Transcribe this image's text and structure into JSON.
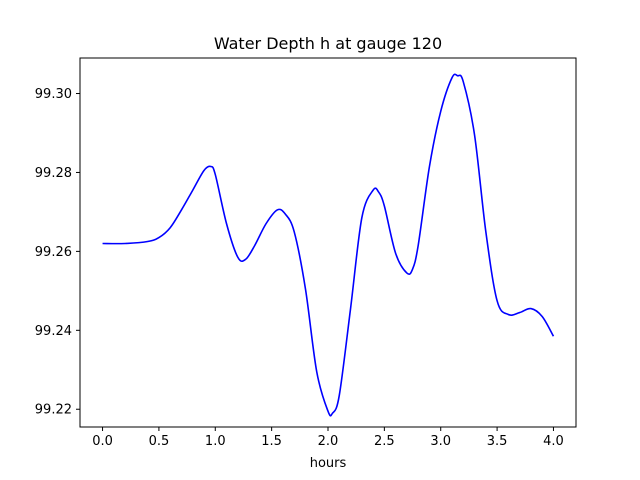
{
  "chart_data": {
    "type": "line",
    "title": "Water Depth h at gauge 120",
    "xlabel": "hours",
    "ylabel": "",
    "xlim": [
      -0.2,
      4.2
    ],
    "ylim": [
      99.2155,
      99.309
    ],
    "grid": false,
    "x_ticks": [
      0.0,
      0.5,
      1.0,
      1.5,
      2.0,
      2.5,
      3.0,
      3.5,
      4.0
    ],
    "x_tick_labels": [
      "0.0",
      "0.5",
      "1.0",
      "1.5",
      "2.0",
      "2.5",
      "3.0",
      "3.5",
      "4.0"
    ],
    "y_ticks": [
      99.22,
      99.24,
      99.26,
      99.28,
      99.3
    ],
    "y_tick_labels": [
      "99.22",
      "99.24",
      "99.26",
      "99.28",
      "99.30"
    ],
    "series": [
      {
        "color": "#0000ff",
        "x": [
          0.0,
          0.2,
          0.4,
          0.5,
          0.6,
          0.7,
          0.8,
          0.9,
          0.96,
          1.0,
          1.1,
          1.2,
          1.27,
          1.35,
          1.45,
          1.55,
          1.62,
          1.7,
          1.8,
          1.9,
          2.0,
          2.04,
          2.1,
          2.2,
          2.3,
          2.4,
          2.45,
          2.5,
          2.6,
          2.7,
          2.75,
          2.8,
          2.9,
          3.0,
          3.1,
          3.15,
          3.2,
          3.3,
          3.4,
          3.5,
          3.6,
          3.7,
          3.8,
          3.9,
          4.0
        ],
        "y": [
          99.262,
          99.262,
          99.2625,
          99.2635,
          99.266,
          99.2705,
          99.2755,
          99.2805,
          99.2815,
          99.2795,
          99.267,
          99.2585,
          99.258,
          99.2615,
          99.267,
          99.2705,
          99.2695,
          99.265,
          99.2505,
          99.2295,
          99.2195,
          99.219,
          99.2235,
          99.2455,
          99.2685,
          99.2755,
          99.275,
          99.2715,
          99.2595,
          99.2545,
          99.2555,
          99.2615,
          99.2815,
          99.2955,
          99.304,
          99.3045,
          99.303,
          99.2895,
          99.265,
          99.2475,
          99.244,
          99.2445,
          99.2455,
          99.2435,
          99.2385
        ]
      }
    ]
  }
}
